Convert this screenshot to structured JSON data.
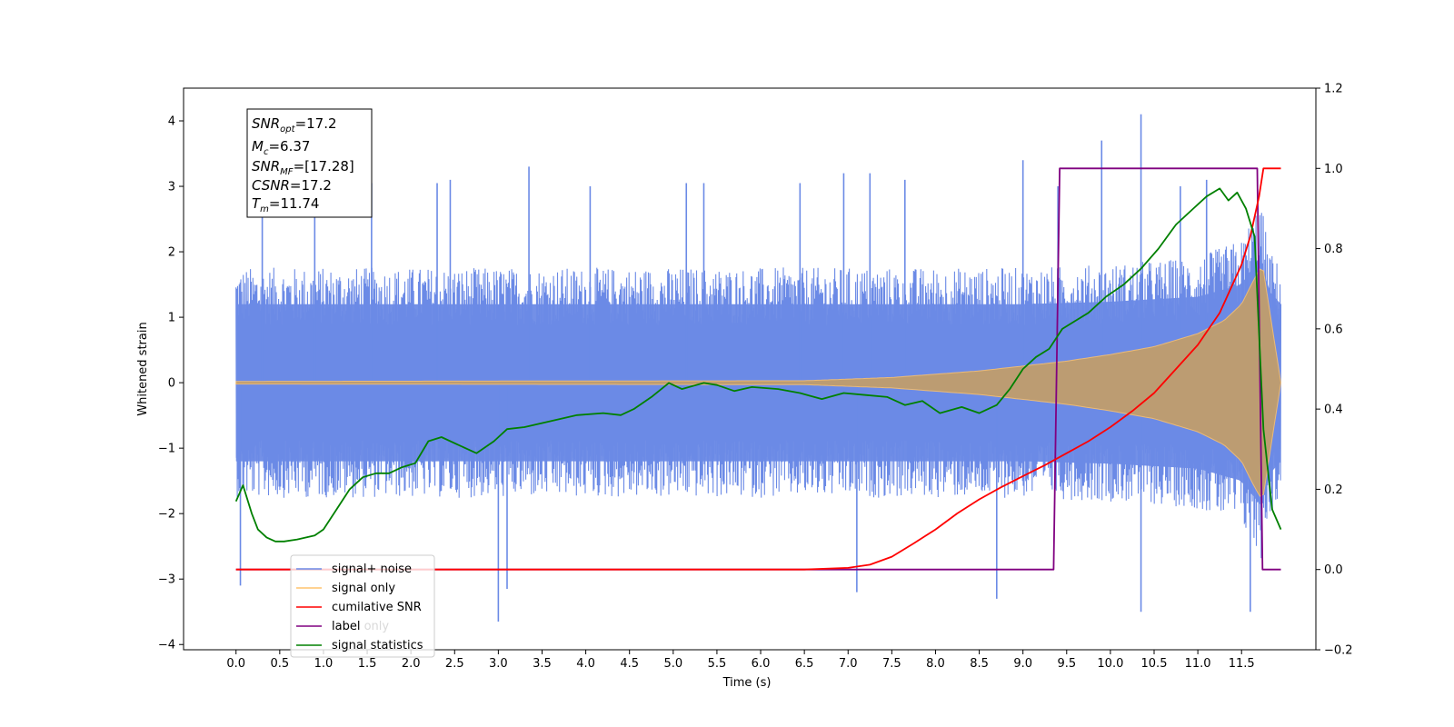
{
  "chart_data": {
    "type": "line",
    "xlabel": "Time (s)",
    "ylabel": "Whitened strain",
    "xlim": [
      -0.6,
      12.35
    ],
    "ylim": [
      -4.08,
      4.5
    ],
    "y2lim": [
      -0.2,
      1.2
    ],
    "grid": false,
    "legend_position": "lower-left",
    "x_ticks": [
      "0.0",
      "0.5",
      "1.0",
      "1.5",
      "2.0",
      "2.5",
      "3.0",
      "3.5",
      "4.0",
      "4.5",
      "5.0",
      "5.5",
      "6.0",
      "6.5",
      "7.0",
      "7.5",
      "8.0",
      "8.5",
      "9.0",
      "9.5",
      "10.0",
      "10.5",
      "11.0",
      "11.5"
    ],
    "y_ticks": [
      "4",
      "3",
      "2",
      "1",
      "0",
      "−1",
      "−2",
      "−3",
      "−4"
    ],
    "y2_ticks": [
      "1.2",
      "1.0",
      "0.8",
      "0.6",
      "0.4",
      "0.2",
      "0.0",
      "−0.2"
    ],
    "info_box": {
      "snr_opt": {
        "symbol": "SNR",
        "sub": "opt",
        "value": "=17.2"
      },
      "mc": {
        "symbol": "M",
        "sub": "c",
        "value": "=6.37"
      },
      "snr_mf": {
        "symbol": "SNR",
        "sub": "MF",
        "value": "=[17.28]"
      },
      "csnr": {
        "symbol": "CSNR",
        "value": "=17.2"
      },
      "tm": {
        "symbol": "T",
        "sub": "m",
        "value": "=11.74"
      }
    },
    "legend": {
      "signal_noise": {
        "label": "signal+ noise",
        "color": "#6b8ae6"
      },
      "signal_only": {
        "label": "signal only",
        "color": "#ffc46e"
      },
      "cumulative_snr": {
        "label": "cumilative SNR",
        "color": "#ff0000"
      },
      "label_line": {
        "label": "label",
        "color": "#800080"
      },
      "label_only_ghost": {
        "label": "label only",
        "color": "#d9d9d9"
      },
      "signal_statistics": {
        "label": "signal statistics",
        "color": "#008000"
      }
    },
    "series": [
      {
        "name": "signal+ noise",
        "axis": "left",
        "color": "#6b8ae6",
        "band_x": [
          0.0,
          9.0,
          10.0,
          11.0,
          11.5,
          11.72,
          11.8,
          11.95
        ],
        "band_upper": [
          1.6,
          1.6,
          1.65,
          1.75,
          2.0,
          2.6,
          1.9,
          1.6
        ],
        "band_lower": [
          -1.6,
          -1.6,
          -1.65,
          -1.75,
          -2.0,
          -2.5,
          -1.9,
          -1.6
        ],
        "spikes": [
          [
            0.05,
            -3.1
          ],
          [
            0.3,
            2.6
          ],
          [
            0.9,
            3.1
          ],
          [
            1.55,
            3.05
          ],
          [
            2.3,
            3.05
          ],
          [
            2.45,
            3.1
          ],
          [
            3.0,
            -3.65
          ],
          [
            3.1,
            -3.15
          ],
          [
            3.35,
            3.3
          ],
          [
            4.05,
            3.0
          ],
          [
            5.15,
            3.05
          ],
          [
            5.35,
            3.05
          ],
          [
            6.45,
            3.05
          ],
          [
            6.95,
            3.2
          ],
          [
            7.25,
            3.2
          ],
          [
            7.65,
            3.1
          ],
          [
            9.0,
            3.4
          ],
          [
            9.4,
            3.0
          ],
          [
            9.9,
            3.7
          ],
          [
            10.35,
            4.1
          ],
          [
            10.35,
            -3.5
          ],
          [
            10.8,
            3.0
          ],
          [
            11.1,
            3.1
          ],
          [
            11.6,
            -3.5
          ],
          [
            7.1,
            -3.2
          ],
          [
            8.7,
            -3.3
          ]
        ]
      },
      {
        "name": "signal only",
        "axis": "left",
        "color": "#ffc46e",
        "envelope_x": [
          0.0,
          6.5,
          7.5,
          8.5,
          9.5,
          10.0,
          10.5,
          11.0,
          11.3,
          11.5,
          11.65,
          11.74,
          11.95
        ],
        "envelope_amp": [
          0.02,
          0.03,
          0.08,
          0.18,
          0.33,
          0.43,
          0.55,
          0.75,
          0.95,
          1.2,
          1.6,
          1.8,
          0.0
        ]
      },
      {
        "name": "cumilative SNR",
        "axis": "right",
        "color": "#ff0000",
        "x": [
          0.0,
          6.5,
          7.0,
          7.25,
          7.5,
          7.75,
          8.0,
          8.25,
          8.5,
          8.75,
          9.0,
          9.25,
          9.5,
          9.75,
          10.0,
          10.25,
          10.5,
          10.75,
          11.0,
          11.25,
          11.5,
          11.6,
          11.7,
          11.75,
          11.95
        ],
        "values": [
          0.0,
          0.0,
          0.004,
          0.012,
          0.032,
          0.065,
          0.1,
          0.14,
          0.175,
          0.205,
          0.233,
          0.26,
          0.29,
          0.32,
          0.355,
          0.395,
          0.44,
          0.5,
          0.56,
          0.64,
          0.76,
          0.83,
          0.93,
          1.0,
          1.0
        ]
      },
      {
        "name": "label",
        "axis": "right",
        "color": "#800080",
        "x": [
          0.0,
          9.35,
          9.42,
          11.68,
          11.74,
          11.95
        ],
        "values": [
          0.0,
          0.0,
          1.0,
          1.0,
          0.0,
          0.0
        ]
      },
      {
        "name": "signal statistics",
        "axis": "right",
        "color": "#008000",
        "x": [
          0.0,
          0.08,
          0.18,
          0.25,
          0.35,
          0.45,
          0.55,
          0.7,
          0.9,
          1.0,
          1.15,
          1.3,
          1.45,
          1.6,
          1.75,
          1.9,
          2.05,
          2.2,
          2.35,
          2.55,
          2.75,
          2.95,
          3.1,
          3.3,
          3.6,
          3.9,
          4.2,
          4.4,
          4.55,
          4.75,
          4.95,
          5.1,
          5.35,
          5.5,
          5.7,
          5.9,
          6.2,
          6.45,
          6.7,
          6.95,
          7.2,
          7.45,
          7.65,
          7.85,
          8.05,
          8.3,
          8.5,
          8.7,
          8.85,
          9.0,
          9.15,
          9.3,
          9.45,
          9.6,
          9.75,
          9.95,
          10.15,
          10.35,
          10.55,
          10.75,
          10.95,
          11.1,
          11.25,
          11.35,
          11.45,
          11.55,
          11.65,
          11.75,
          11.85,
          11.95
        ],
        "values": [
          0.17,
          0.21,
          0.14,
          0.1,
          0.08,
          0.07,
          0.07,
          0.075,
          0.085,
          0.1,
          0.15,
          0.2,
          0.23,
          0.24,
          0.24,
          0.255,
          0.265,
          0.32,
          0.33,
          0.31,
          0.29,
          0.32,
          0.35,
          0.355,
          0.37,
          0.385,
          0.39,
          0.385,
          0.4,
          0.43,
          0.465,
          0.45,
          0.465,
          0.46,
          0.445,
          0.455,
          0.45,
          0.44,
          0.425,
          0.44,
          0.435,
          0.43,
          0.41,
          0.42,
          0.39,
          0.405,
          0.39,
          0.41,
          0.45,
          0.5,
          0.53,
          0.55,
          0.6,
          0.62,
          0.64,
          0.68,
          0.71,
          0.75,
          0.8,
          0.86,
          0.9,
          0.93,
          0.95,
          0.92,
          0.94,
          0.9,
          0.83,
          0.35,
          0.15,
          0.1
        ]
      }
    ]
  }
}
